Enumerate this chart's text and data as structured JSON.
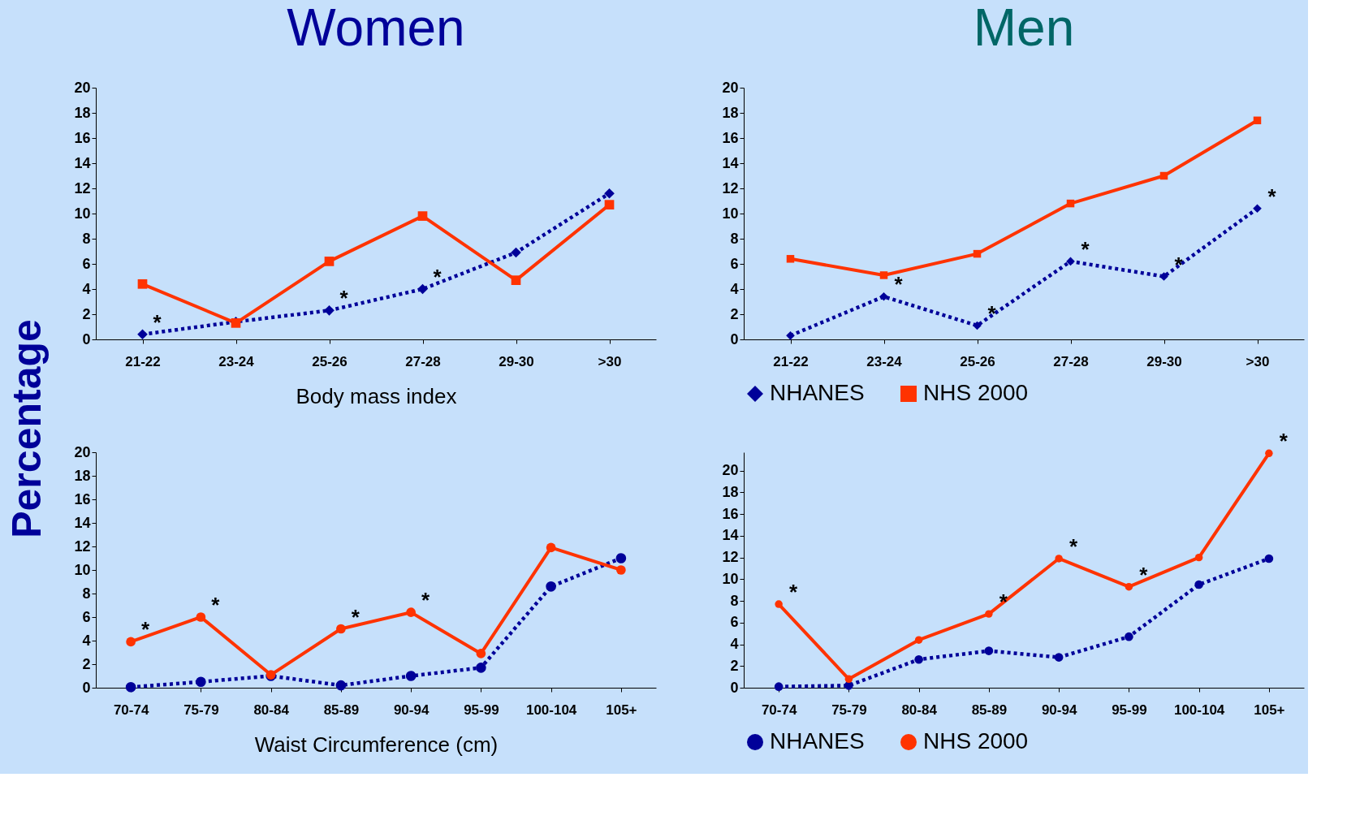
{
  "chart_data": [
    {
      "type": "line",
      "title": "Women",
      "ylabel": "Percentage",
      "xlabel": "Body mass index",
      "categories": [
        "21-22",
        "23-24",
        "25-26",
        "27-28",
        "29-30",
        ">30"
      ],
      "series": [
        {
          "color": "#000099",
          "marker": "diamond",
          "line_style": "dotted",
          "values": [
            0.4,
            1.4,
            2.3,
            4.0,
            6.9,
            11.6
          ]
        },
        {
          "color": "#ff3300",
          "marker": "square",
          "line_style": "solid",
          "values": [
            4.4,
            1.3,
            6.2,
            9.8,
            4.7,
            10.7
          ]
        }
      ],
      "ylim": [
        0,
        20
      ],
      "yticks": [
        0,
        2,
        4,
        6,
        8,
        10,
        12,
        14,
        16,
        18,
        20
      ],
      "annotations": [
        {
          "text": "*",
          "x": "21-22",
          "y": 0.4
        },
        {
          "text": "*",
          "x": "25-26",
          "y": 2.3
        },
        {
          "text": "*",
          "x": "27-28",
          "y": 4.0
        }
      ]
    },
    {
      "type": "line",
      "title": "Men",
      "categories": [
        "21-22",
        "23-24",
        "25-26",
        "27-28",
        "29-30",
        ">30"
      ],
      "series": [
        {
          "name": "NHANES",
          "color": "#000099",
          "marker": "diamond",
          "line_style": "dotted",
          "values": [
            0.3,
            3.4,
            1.1,
            6.2,
            5.0,
            10.4
          ]
        },
        {
          "name": "NHS 2000",
          "color": "#ff3300",
          "marker": "square",
          "line_style": "solid",
          "values": [
            6.4,
            5.1,
            6.8,
            10.8,
            13.0,
            17.4
          ]
        }
      ],
      "ylim": [
        0,
        20
      ],
      "yticks": [
        0,
        2,
        4,
        6,
        8,
        10,
        12,
        14,
        16,
        18,
        20
      ],
      "legend": "bottom",
      "annotations": [
        {
          "text": "*",
          "x": "23-24",
          "y": 3.4
        },
        {
          "text": "*",
          "x": "25-26",
          "y": 1.1
        },
        {
          "text": "*",
          "x": "27-28",
          "y": 6.2
        },
        {
          "text": "*",
          "x": "29-30",
          "y": 5.0
        },
        {
          "text": "*",
          "x": ">30",
          "y": 10.4
        }
      ]
    },
    {
      "type": "line",
      "xlabel": "Waist Circumference (cm)",
      "categories": [
        "70-74",
        "75-79",
        "80-84",
        "85-89",
        "90-94",
        "95-99",
        "100-104",
        "105+"
      ],
      "series": [
        {
          "color": "#000099",
          "marker": "circle",
          "line_style": "dotted",
          "values": [
            0.05,
            0.5,
            1.0,
            0.2,
            1.0,
            1.7,
            8.6,
            11.0
          ]
        },
        {
          "color": "#ff3300",
          "marker": "circle",
          "line_style": "solid",
          "values": [
            3.9,
            6.0,
            1.1,
            5.0,
            6.4,
            2.9,
            11.9,
            10.0
          ]
        }
      ],
      "ylim": [
        0,
        20
      ],
      "yticks": [
        0,
        2,
        4,
        6,
        8,
        10,
        12,
        14,
        16,
        18,
        20
      ],
      "annotations": [
        {
          "text": "*",
          "x": "70-74",
          "y": 3.9
        },
        {
          "text": "*",
          "x": "75-79",
          "y": 6.0
        },
        {
          "text": "*",
          "x": "85-89",
          "y": 5.0
        },
        {
          "text": "*",
          "x": "90-94",
          "y": 6.4
        }
      ]
    },
    {
      "type": "line",
      "categories": [
        "70-74",
        "75-79",
        "80-84",
        "85-89",
        "90-94",
        "95-99",
        "100-104",
        "105+"
      ],
      "series": [
        {
          "name": "NHANES",
          "color": "#000099",
          "marker": "circle",
          "line_style": "dotted",
          "values": [
            0.1,
            0.2,
            2.6,
            3.4,
            2.8,
            4.7,
            9.5,
            11.9
          ]
        },
        {
          "name": "NHS 2000",
          "color": "#ff3300",
          "marker": "circle",
          "line_style": "solid",
          "values": [
            7.7,
            0.8,
            4.4,
            6.8,
            11.9,
            9.3,
            12.0,
            21.6
          ]
        }
      ],
      "ylim": [
        0,
        21.7
      ],
      "yticks": [
        0,
        2,
        4,
        6,
        8,
        10,
        12,
        14,
        16,
        18,
        20
      ],
      "legend": "bottom",
      "annotations": [
        {
          "text": "*",
          "x": "70-74",
          "y": 7.7
        },
        {
          "text": "*",
          "x": "85-89",
          "y": 6.8
        },
        {
          "text": "*",
          "x": "90-94",
          "y": 11.9
        },
        {
          "text": "*",
          "x": "95-99",
          "y": 9.3
        },
        {
          "text": "*",
          "x": "105+",
          "y": 21.6
        }
      ]
    }
  ]
}
